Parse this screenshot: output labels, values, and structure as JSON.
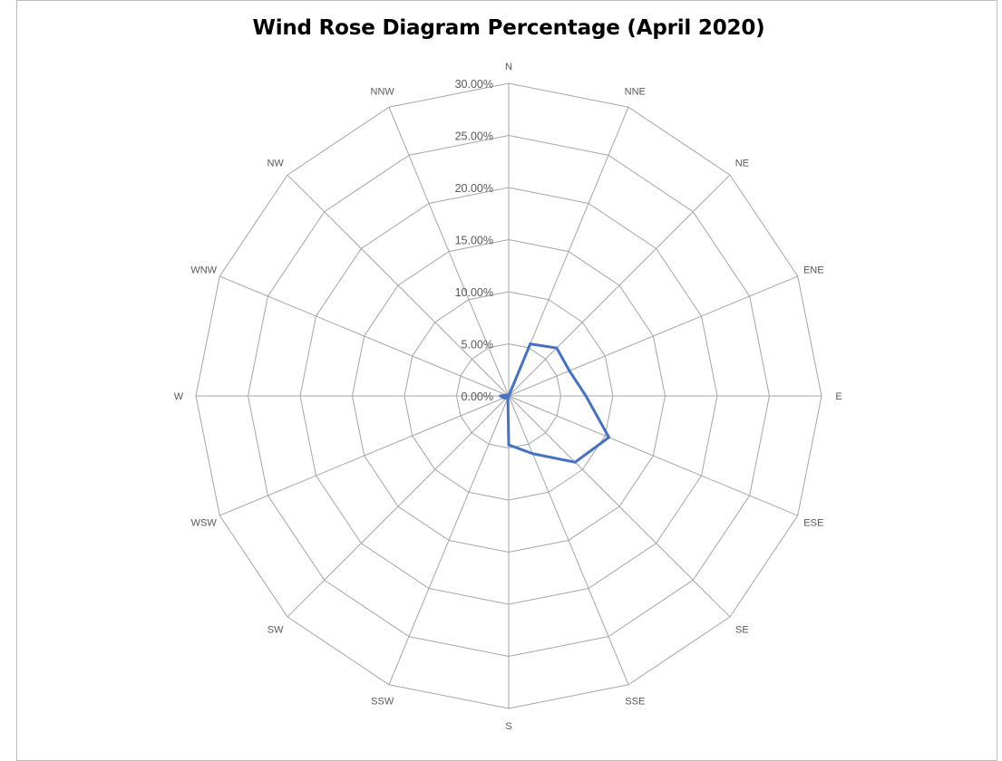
{
  "chart_data": {
    "type": "radar",
    "title": "Wind Rose Diagram Percentage (April 2020)",
    "categories": [
      "N",
      "NNE",
      "NE",
      "ENE",
      "E",
      "ESE",
      "SE",
      "SSE",
      "S",
      "SSW",
      "SW",
      "WSW",
      "W",
      "WNW",
      "NW",
      "NNW"
    ],
    "series": [
      {
        "values": [
          0.0,
          5.4,
          6.5,
          6.3,
          7.4,
          10.4,
          9.0,
          6.0,
          4.7,
          0.2,
          0.3,
          0.5,
          0.8,
          0.2,
          0.1,
          0.1
        ],
        "color": "#4472c4"
      }
    ],
    "ticks": [
      "0.00%",
      "5.00%",
      "10.00%",
      "15.00%",
      "20.00%",
      "25.00%",
      "30.00%"
    ],
    "rlim": [
      0,
      30
    ],
    "grid": true,
    "legend": false
  }
}
